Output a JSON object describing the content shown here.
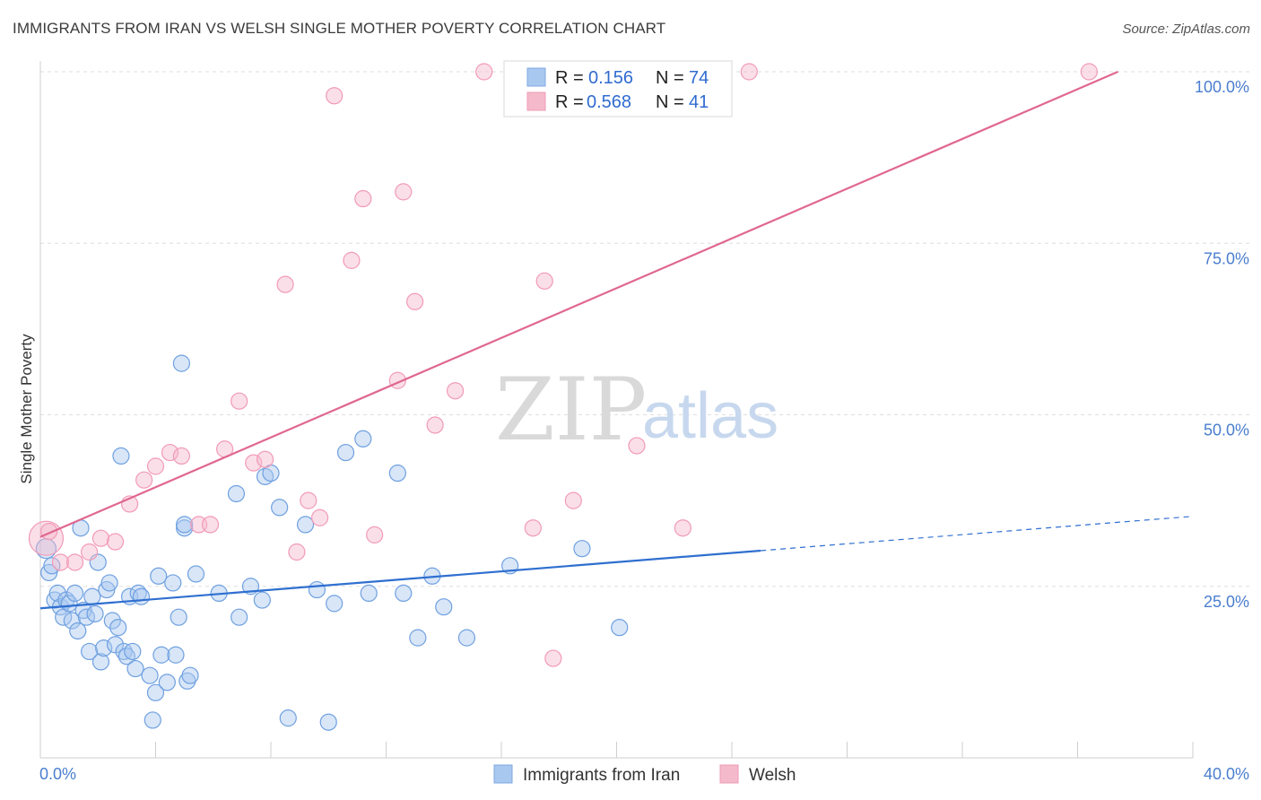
{
  "title": "IMMIGRANTS FROM IRAN VS WELSH SINGLE MOTHER POVERTY CORRELATION CHART",
  "source": "Source: ZipAtlas.com",
  "watermark": {
    "zip": "ZIP",
    "atlas": "atlas"
  },
  "legend": {
    "rows": [
      {
        "r_label": "R =",
        "r_value": "0.156",
        "n_label": "N =",
        "n_value": "74",
        "color": "#a9c8f0"
      },
      {
        "r_label": "R =",
        "r_value": "0.568",
        "n_label": "N =",
        "n_value": "41",
        "color": "#f5b9cc"
      }
    ]
  },
  "bottom_legend": [
    {
      "label": "Immigrants from Iran",
      "color": "#a9c8f0"
    },
    {
      "label": "Welsh",
      "color": "#f5b9cc"
    }
  ],
  "chart_data": {
    "type": "scatter",
    "xlabel": "",
    "ylabel": "Single Mother Poverty",
    "xlim": [
      0,
      40
    ],
    "ylim": [
      0,
      100
    ],
    "x_tick_labels": [
      "0.0%",
      "40.0%"
    ],
    "y_ticks": [
      25,
      50,
      75,
      100
    ],
    "y_tick_labels": [
      "25.0%",
      "50.0%",
      "75.0%",
      "100.0%"
    ],
    "grid": true,
    "series": [
      {
        "name": "Immigrants from Iran",
        "color": "#6fa0e0",
        "trend": {
          "x0": 0,
          "y0": 21.8,
          "x1": 25,
          "y1": 30.2,
          "dash_to_x": 40,
          "dash_to_y": 35.2,
          "color": "#2f6fd0"
        },
        "points": [
          [
            0.2,
            30.5
          ],
          [
            0.3,
            27
          ],
          [
            0.4,
            28
          ],
          [
            0.5,
            23
          ],
          [
            0.6,
            24
          ],
          [
            0.7,
            22
          ],
          [
            0.8,
            20.5
          ],
          [
            0.9,
            23
          ],
          [
            1.0,
            22.5
          ],
          [
            1.1,
            20
          ],
          [
            1.2,
            24
          ],
          [
            1.3,
            18.5
          ],
          [
            1.4,
            33.5
          ],
          [
            1.5,
            21.5
          ],
          [
            1.6,
            20.5
          ],
          [
            1.7,
            15.5
          ],
          [
            1.8,
            23.5
          ],
          [
            1.9,
            21
          ],
          [
            2.0,
            28.5
          ],
          [
            2.1,
            14
          ],
          [
            2.2,
            16
          ],
          [
            2.3,
            24.5
          ],
          [
            2.4,
            25.5
          ],
          [
            2.5,
            20
          ],
          [
            2.6,
            16.5
          ],
          [
            2.7,
            19
          ],
          [
            2.8,
            44
          ],
          [
            2.9,
            15.5
          ],
          [
            3.0,
            14.8
          ],
          [
            3.1,
            23.5
          ],
          [
            3.2,
            15.5
          ],
          [
            3.3,
            13
          ],
          [
            3.4,
            24
          ],
          [
            3.5,
            23.5
          ],
          [
            3.8,
            12
          ],
          [
            3.9,
            5.5
          ],
          [
            4.0,
            9.5
          ],
          [
            4.1,
            26.5
          ],
          [
            4.2,
            15
          ],
          [
            4.4,
            11
          ],
          [
            4.6,
            25.5
          ],
          [
            4.7,
            15
          ],
          [
            4.8,
            20.5
          ],
          [
            4.9,
            57.5
          ],
          [
            5.0,
            33.5
          ],
          [
            5.1,
            11.2
          ],
          [
            5.2,
            12
          ],
          [
            5.4,
            26.8
          ],
          [
            6.2,
            24
          ],
          [
            6.8,
            38.5
          ],
          [
            6.9,
            20.5
          ],
          [
            7.3,
            25
          ],
          [
            7.7,
            23
          ],
          [
            7.8,
            41
          ],
          [
            8.0,
            41.5
          ],
          [
            8.3,
            36.5
          ],
          [
            8.6,
            5.8
          ],
          [
            9.2,
            34
          ],
          [
            9.6,
            24.5
          ],
          [
            10.0,
            5.2
          ],
          [
            10.2,
            22.5
          ],
          [
            10.6,
            44.5
          ],
          [
            11.2,
            46.5
          ],
          [
            11.4,
            24
          ],
          [
            12.4,
            41.5
          ],
          [
            12.6,
            24
          ],
          [
            13.1,
            17.5
          ],
          [
            13.6,
            26.5
          ],
          [
            14.0,
            22
          ],
          [
            14.8,
            17.5
          ],
          [
            16.3,
            28
          ],
          [
            18.8,
            30.5
          ],
          [
            20.1,
            19
          ],
          [
            5.0,
            34
          ]
        ]
      },
      {
        "name": "Welsh",
        "color": "#f29ab6",
        "trend": {
          "x0": 0,
          "y0": 32.2,
          "x1": 37.4,
          "y1": 100,
          "color": "#e0678f"
        },
        "points": [
          [
            0.2,
            32
          ],
          [
            0.7,
            28.5
          ],
          [
            1.2,
            28.5
          ],
          [
            1.7,
            30
          ],
          [
            2.1,
            32
          ],
          [
            2.6,
            31.5
          ],
          [
            3.1,
            37
          ],
          [
            3.6,
            40.5
          ],
          [
            4.0,
            42.5
          ],
          [
            4.5,
            44.5
          ],
          [
            4.9,
            44
          ],
          [
            5.5,
            34
          ],
          [
            5.9,
            34
          ],
          [
            6.4,
            45
          ],
          [
            6.9,
            52
          ],
          [
            7.4,
            43
          ],
          [
            7.8,
            43.5
          ],
          [
            8.5,
            69
          ],
          [
            8.9,
            30
          ],
          [
            9.3,
            37.5
          ],
          [
            9.7,
            35
          ],
          [
            10.2,
            96.5
          ],
          [
            10.8,
            72.5
          ],
          [
            11.2,
            81.5
          ],
          [
            11.6,
            32.5
          ],
          [
            12.4,
            55
          ],
          [
            12.6,
            82.5
          ],
          [
            13.0,
            66.5
          ],
          [
            13.7,
            48.5
          ],
          [
            14.4,
            53.5
          ],
          [
            15.4,
            100
          ],
          [
            17.1,
            33.5
          ],
          [
            17.5,
            69.5
          ],
          [
            17.8,
            14.5
          ],
          [
            18.5,
            37.5
          ],
          [
            19.5,
            100
          ],
          [
            20.7,
            45.5
          ],
          [
            22.3,
            33.5
          ],
          [
            24.6,
            100
          ],
          [
            36.4,
            100
          ],
          [
            0.3,
            33
          ]
        ]
      }
    ]
  }
}
